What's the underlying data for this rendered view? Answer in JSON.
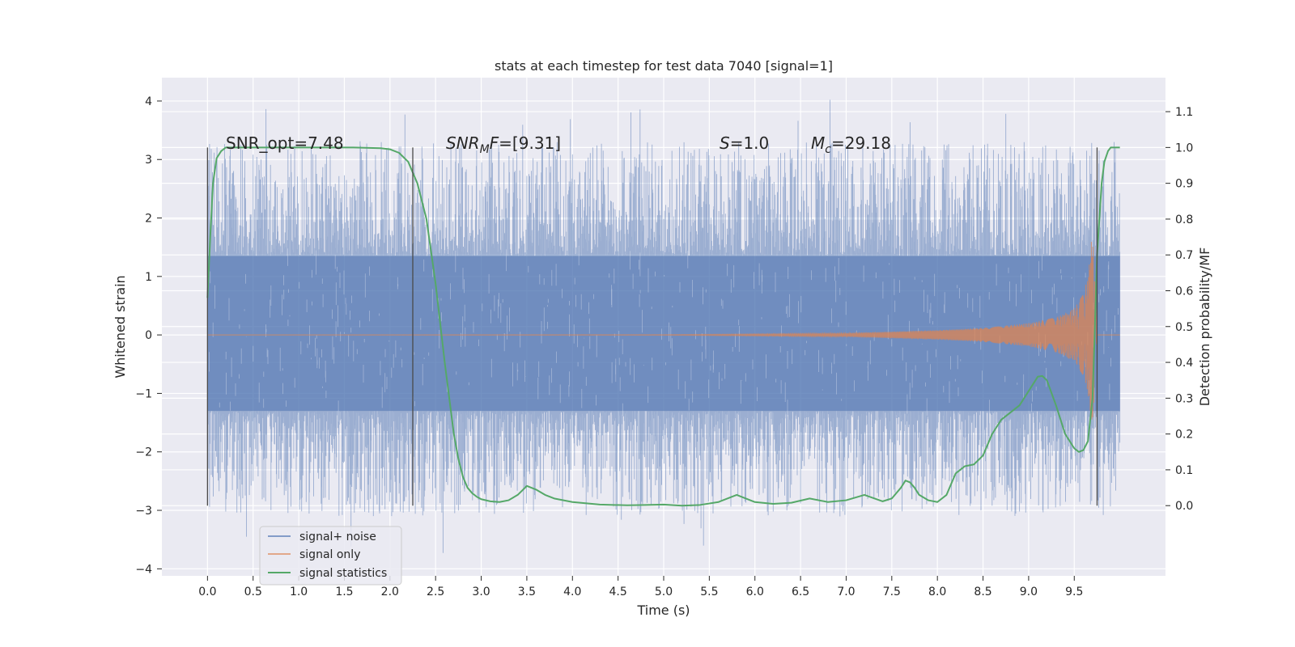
{
  "chart_data": {
    "type": "line",
    "title": "stats at each timestep for test data 7040 [signal=1]",
    "xlabel": "Time (s)",
    "ylabel": "Whitened strain",
    "ylabel_right": "Detection probability/MF",
    "xlim": [
      -0.5,
      10.5
    ],
    "ylim": [
      -4.12,
      4.4
    ],
    "ylim_right": [
      -0.196,
      1.195
    ],
    "x_ticks": [
      "0.0",
      "0.5",
      "1.0",
      "1.5",
      "2.0",
      "2.5",
      "3.0",
      "3.5",
      "4.0",
      "4.5",
      "5.0",
      "5.5",
      "6.0",
      "6.5",
      "7.0",
      "7.5",
      "8.0",
      "8.5",
      "9.0",
      "9.5"
    ],
    "y_ticks": [
      "4",
      "3",
      "2",
      "1",
      "0",
      "−1",
      "−2",
      "−3",
      "−4"
    ],
    "y_right_ticks": [
      "1.1",
      "1.0",
      "0.9",
      "0.8",
      "0.7",
      "0.6",
      "0.5",
      "0.4",
      "0.3",
      "0.2",
      "0.1",
      "0.0"
    ],
    "grid": true,
    "legend_position": "lower-left",
    "annotations": {
      "snr_opt": "SNR_opt=7.48",
      "snr_mf": "SNR_MF=[9.31]",
      "s": "S=1.0",
      "mc": "M_c=29.18"
    },
    "vertical_markers_x": [
      0.0,
      2.25,
      9.75
    ],
    "noise_envelope": {
      "x_range": [
        0.0,
        10.0
      ],
      "dense_band": [
        -1.3,
        1.35
      ],
      "typical_peak": 3.0,
      "max": 4.05,
      "min": -3.75
    },
    "signal_envelope": {
      "x": [
        0.0,
        5.0,
        7.0,
        8.0,
        8.5,
        9.0,
        9.3,
        9.5,
        9.6,
        9.65,
        9.7,
        9.75,
        10.0
      ],
      "amplitude": [
        0.0,
        0.005,
        0.03,
        0.08,
        0.12,
        0.2,
        0.3,
        0.45,
        0.7,
        1.0,
        1.8,
        0.0,
        0.0
      ]
    },
    "series": [
      {
        "name": "signal+ noise",
        "color": "#4c72b0"
      },
      {
        "name": "signal only",
        "color": "#dd8452"
      },
      {
        "name": "signal statistics",
        "color": "#55a868",
        "axis": "right",
        "x": [
          0.0,
          0.03,
          0.06,
          0.1,
          0.15,
          0.2,
          0.4,
          0.8,
          1.2,
          1.6,
          1.9,
          2.0,
          2.1,
          2.2,
          2.3,
          2.4,
          2.5,
          2.6,
          2.7,
          2.75,
          2.8,
          2.85,
          2.9,
          2.95,
          3.0,
          3.1,
          3.2,
          3.3,
          3.4,
          3.5,
          3.6,
          3.7,
          3.8,
          4.0,
          4.3,
          4.6,
          4.8,
          5.0,
          5.2,
          5.4,
          5.6,
          5.8,
          6.0,
          6.2,
          6.4,
          6.6,
          6.8,
          7.0,
          7.2,
          7.4,
          7.5,
          7.6,
          7.65,
          7.7,
          7.75,
          7.8,
          7.9,
          8.0,
          8.1,
          8.2,
          8.3,
          8.4,
          8.5,
          8.6,
          8.7,
          8.8,
          8.9,
          9.0,
          9.1,
          9.15,
          9.2,
          9.3,
          9.4,
          9.5,
          9.55,
          9.6,
          9.65,
          9.7,
          9.72,
          9.75,
          9.78,
          9.8,
          9.83,
          9.87,
          9.9,
          9.95,
          10.0
        ],
        "y": [
          0.58,
          0.75,
          0.9,
          0.97,
          0.99,
          1.0,
          1.0,
          1.0,
          1.0,
          1.0,
          0.998,
          0.995,
          0.985,
          0.96,
          0.9,
          0.8,
          0.62,
          0.4,
          0.2,
          0.13,
          0.08,
          0.05,
          0.035,
          0.025,
          0.018,
          0.012,
          0.01,
          0.015,
          0.03,
          0.055,
          0.045,
          0.03,
          0.02,
          0.01,
          0.003,
          0.001,
          0.002,
          0.003,
          0.0,
          0.002,
          0.01,
          0.03,
          0.01,
          0.005,
          0.008,
          0.02,
          0.01,
          0.015,
          0.03,
          0.012,
          0.02,
          0.05,
          0.07,
          0.065,
          0.05,
          0.03,
          0.015,
          0.01,
          0.03,
          0.09,
          0.11,
          0.115,
          0.14,
          0.2,
          0.24,
          0.26,
          0.28,
          0.32,
          0.36,
          0.362,
          0.35,
          0.28,
          0.2,
          0.16,
          0.15,
          0.155,
          0.18,
          0.3,
          0.45,
          0.7,
          0.82,
          0.9,
          0.96,
          0.99,
          1.0,
          1.0,
          1.0
        ]
      }
    ]
  }
}
